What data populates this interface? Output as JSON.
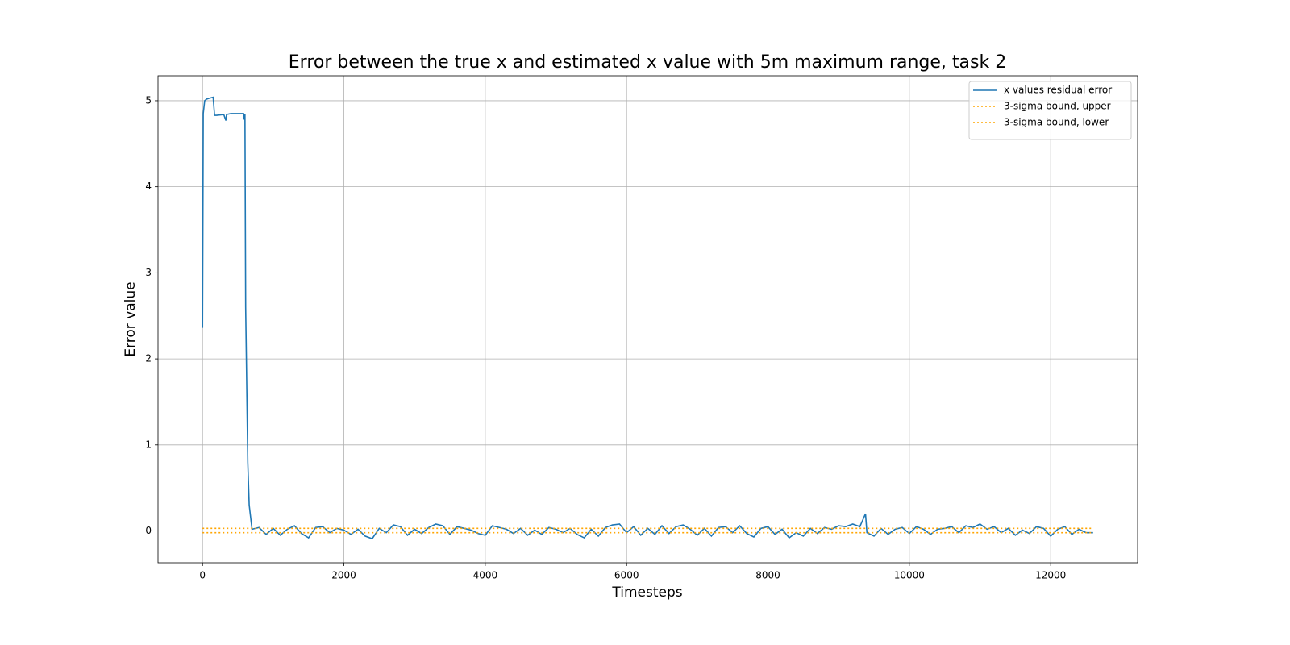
{
  "chart_data": {
    "type": "line",
    "title": "Error between the true x and estimated x value with 5m maximum range, task 2",
    "x_label": "Timesteps",
    "y_label": "Error value",
    "xlim": [
      -630,
      13230
    ],
    "ylim": [
      -0.37,
      5.29
    ],
    "xticks": [
      0,
      2000,
      4000,
      6000,
      8000,
      10000,
      12000
    ],
    "yticks": [
      0,
      1,
      2,
      3,
      4,
      5
    ],
    "grid": true,
    "legend": "upper right",
    "series": [
      {
        "name": "x values residual error",
        "color": "#1f77b4",
        "style": "solid",
        "x": [
          0,
          10,
          30,
          60,
          100,
          150,
          170,
          200,
          300,
          330,
          340,
          400,
          500,
          580,
          590,
          600,
          610,
          620,
          640,
          660,
          700,
          800,
          900,
          1000,
          1100,
          1200,
          1300,
          1400,
          1500,
          1600,
          1700,
          1800,
          1900,
          2000,
          2100,
          2200,
          2300,
          2400,
          2500,
          2600,
          2700,
          2800,
          2900,
          3000,
          3100,
          3200,
          3300,
          3400,
          3500,
          3600,
          3700,
          3800,
          3900,
          4000,
          4100,
          4200,
          4300,
          4400,
          4500,
          4600,
          4700,
          4800,
          4900,
          5000,
          5100,
          5200,
          5300,
          5400,
          5500,
          5600,
          5700,
          5800,
          5900,
          6000,
          6100,
          6200,
          6300,
          6400,
          6500,
          6600,
          6700,
          6800,
          6900,
          7000,
          7100,
          7200,
          7300,
          7400,
          7500,
          7600,
          7700,
          7800,
          7900,
          8000,
          8100,
          8200,
          8300,
          8400,
          8500,
          8600,
          8700,
          8800,
          8900,
          9000,
          9100,
          9200,
          9300,
          9380,
          9400,
          9500,
          9600,
          9700,
          9800,
          9900,
          10000,
          10100,
          10200,
          10300,
          10400,
          10500,
          10600,
          10700,
          10800,
          10900,
          11000,
          11100,
          11200,
          11300,
          11400,
          11500,
          11600,
          11700,
          11800,
          11900,
          12000,
          12100,
          12200,
          12300,
          12400,
          12500,
          12600
        ],
        "values": [
          2.36,
          4.85,
          5.0,
          5.02,
          5.03,
          5.04,
          4.83,
          4.83,
          4.84,
          4.77,
          4.84,
          4.85,
          4.85,
          4.85,
          4.78,
          4.84,
          2.6,
          2.0,
          0.8,
          0.3,
          0.02,
          0.04,
          -0.04,
          0.03,
          -0.05,
          0.02,
          0.06,
          -0.03,
          -0.08,
          0.04,
          0.05,
          -0.02,
          0.03,
          0.01,
          -0.04,
          0.02,
          -0.06,
          -0.09,
          0.03,
          -0.02,
          0.07,
          0.05,
          -0.05,
          0.02,
          -0.03,
          0.04,
          0.08,
          0.06,
          -0.04,
          0.05,
          0.03,
          0.01,
          -0.03,
          -0.05,
          0.06,
          0.04,
          0.02,
          -0.03,
          0.03,
          -0.05,
          0.01,
          -0.04,
          0.04,
          0.02,
          -0.02,
          0.03,
          -0.04,
          -0.08,
          0.02,
          -0.06,
          0.04,
          0.07,
          0.08,
          -0.02,
          0.05,
          -0.05,
          0.03,
          -0.04,
          0.06,
          -0.03,
          0.05,
          0.07,
          0.02,
          -0.05,
          0.03,
          -0.06,
          0.04,
          0.05,
          -0.02,
          0.06,
          -0.03,
          -0.07,
          0.03,
          0.05,
          -0.04,
          0.02,
          -0.08,
          -0.02,
          -0.06,
          0.03,
          -0.03,
          0.04,
          0.02,
          0.06,
          0.05,
          0.08,
          0.05,
          0.2,
          -0.02,
          -0.06,
          0.03,
          -0.04,
          0.02,
          0.04,
          -0.03,
          0.05,
          0.02,
          -0.04,
          0.02,
          0.03,
          0.05,
          -0.02,
          0.06,
          0.04,
          0.08,
          0.02,
          0.05,
          -0.02,
          0.03,
          -0.05,
          0.01,
          -0.03,
          0.05,
          0.03,
          -0.06,
          0.02,
          0.05,
          -0.04,
          0.02,
          -0.02,
          -0.02
        ]
      },
      {
        "name": "3-sigma bound, upper",
        "color": "#ffa500",
        "style": "dotted",
        "x": [
          0,
          12600
        ],
        "values": [
          0.03,
          0.03
        ]
      },
      {
        "name": "3-sigma bound, lower",
        "color": "#ffa500",
        "style": "dotted",
        "x": [
          0,
          12600
        ],
        "values": [
          -0.02,
          -0.02
        ]
      }
    ]
  }
}
